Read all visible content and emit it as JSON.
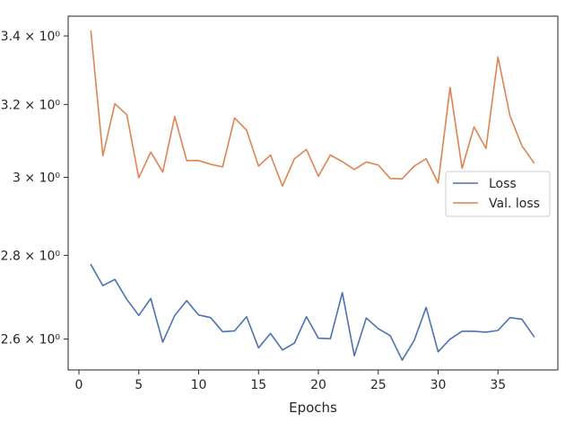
{
  "chart_data": {
    "type": "line",
    "xlabel": "Epochs",
    "ylabel": "",
    "xlim": [
      -0.9,
      40
    ],
    "ylim": [
      2.53,
      3.46
    ],
    "yscale": "log",
    "grid": false,
    "legend_position": "center-right",
    "x_ticks": [
      {
        "value": 0,
        "label": "0"
      },
      {
        "value": 5,
        "label": "5"
      },
      {
        "value": 10,
        "label": "10"
      },
      {
        "value": 15,
        "label": "15"
      },
      {
        "value": 20,
        "label": "20"
      },
      {
        "value": 25,
        "label": "25"
      },
      {
        "value": 30,
        "label": "30"
      },
      {
        "value": 35,
        "label": "35"
      }
    ],
    "y_ticks": [
      {
        "value": 2.6,
        "label": "2.6 × 10⁰"
      },
      {
        "value": 2.8,
        "label": "2.8 × 10⁰"
      },
      {
        "value": 3.0,
        "label": "3 × 10⁰"
      },
      {
        "value": 3.2,
        "label": "3.2 × 10⁰"
      },
      {
        "value": 3.4,
        "label": "3.4 × 10⁰"
      }
    ],
    "x": [
      1,
      2,
      3,
      4,
      5,
      6,
      7,
      8,
      9,
      10,
      11,
      12,
      13,
      14,
      15,
      16,
      17,
      18,
      19,
      20,
      21,
      22,
      23,
      24,
      25,
      26,
      27,
      28,
      29,
      30,
      31,
      32,
      33,
      34,
      35,
      36,
      37,
      38
    ],
    "series": [
      {
        "name": "Loss",
        "color": "#4c72b0",
        "values": [
          2.777,
          2.726,
          2.741,
          2.693,
          2.655,
          2.695,
          2.593,
          2.655,
          2.69,
          2.656,
          2.65,
          2.617,
          2.619,
          2.652,
          2.58,
          2.613,
          2.575,
          2.591,
          2.652,
          2.602,
          2.601,
          2.709,
          2.562,
          2.649,
          2.624,
          2.608,
          2.552,
          2.597,
          2.674,
          2.571,
          2.6,
          2.618,
          2.618,
          2.616,
          2.62,
          2.65,
          2.646,
          2.606
        ]
      },
      {
        "name": "Val. loss",
        "color": "#dd8452",
        "values": [
          3.414,
          3.058,
          3.202,
          3.171,
          2.999,
          3.068,
          3.014,
          3.166,
          3.045,
          3.045,
          3.035,
          3.028,
          3.162,
          3.128,
          3.03,
          3.06,
          2.977,
          3.05,
          3.075,
          3.003,
          3.06,
          3.042,
          3.021,
          3.041,
          3.033,
          2.997,
          2.996,
          3.03,
          3.05,
          2.985,
          3.248,
          3.024,
          3.137,
          3.078,
          3.337,
          3.168,
          3.085,
          3.039
        ]
      }
    ]
  }
}
